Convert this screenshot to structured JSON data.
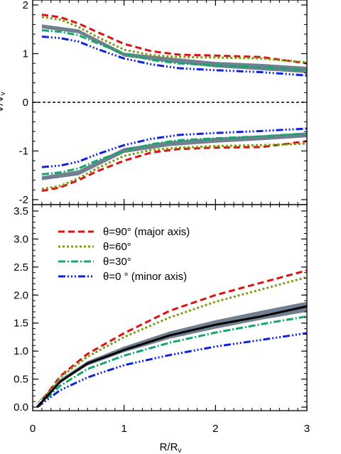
{
  "chart_data": [
    {
      "id": "top",
      "type": "line",
      "xlim": [
        0,
        3
      ],
      "ylim": [
        -2,
        2
      ],
      "yticks": [
        "-2",
        "-1",
        "0",
        "1",
        "2"
      ],
      "ylabel_fragment": "V/V",
      "ylabel_sub": "v",
      "zero_line": true,
      "band": {
        "color": "#708090",
        "x": [
          0.1,
          0.5,
          1,
          1.5,
          2,
          2.5,
          3
        ],
        "upper": [
          1.6,
          1.5,
          1.02,
          0.92,
          0.83,
          0.79,
          0.73
        ],
        "lower": [
          1.52,
          1.42,
          0.94,
          0.82,
          0.72,
          0.66,
          0.6
        ]
      },
      "series": [
        {
          "key": "t90",
          "color": "#dd1111",
          "dash": "9,5",
          "width": 3,
          "x": [
            0.1,
            0.3,
            0.5,
            0.7,
            1,
            1.3,
            1.6,
            2,
            2.5,
            3
          ],
          "y": [
            1.8,
            1.75,
            1.62,
            1.45,
            1.2,
            1.05,
            0.98,
            0.96,
            0.93,
            0.8
          ]
        },
        {
          "key": "t60",
          "color": "#7f9a1a",
          "dash": "3,3",
          "width": 3,
          "x": [
            0.1,
            0.3,
            0.5,
            0.7,
            1,
            1.3,
            1.6,
            2,
            2.5,
            3
          ],
          "y": [
            1.75,
            1.7,
            1.55,
            1.35,
            1.08,
            0.97,
            0.93,
            0.92,
            0.9,
            0.82
          ]
        },
        {
          "key": "t30",
          "color": "#11a86a",
          "dash": "10,3,2,3",
          "width": 3,
          "x": [
            0.1,
            0.3,
            0.5,
            0.7,
            1,
            1.3,
            1.6,
            2,
            2.5,
            3
          ],
          "y": [
            1.48,
            1.45,
            1.38,
            1.22,
            1.0,
            0.87,
            0.8,
            0.76,
            0.72,
            0.66
          ]
        },
        {
          "key": "t0",
          "color": "#1122dd",
          "dash": "10,3,2,3,2,3,2,3",
          "width": 3,
          "x": [
            0.1,
            0.3,
            0.5,
            0.7,
            1,
            1.3,
            1.6,
            2,
            2.5,
            3
          ],
          "y": [
            1.35,
            1.32,
            1.25,
            1.1,
            0.9,
            0.78,
            0.7,
            0.66,
            0.62,
            0.55
          ]
        },
        {
          "key": "t90n",
          "color": "#dd1111",
          "dash": "9,5",
          "width": 3,
          "x": [
            0.1,
            0.3,
            0.5,
            0.7,
            1,
            1.3,
            1.6,
            2,
            2.5,
            3
          ],
          "y": [
            -1.82,
            -1.75,
            -1.6,
            -1.42,
            -1.2,
            -1.03,
            -0.96,
            -0.93,
            -0.92,
            -0.8
          ]
        },
        {
          "key": "t60n",
          "color": "#7f9a1a",
          "dash": "3,3",
          "width": 3,
          "x": [
            0.1,
            0.3,
            0.5,
            0.7,
            1,
            1.3,
            1.6,
            2,
            2.5,
            3
          ],
          "y": [
            -1.78,
            -1.72,
            -1.56,
            -1.36,
            -1.1,
            -0.98,
            -0.93,
            -0.9,
            -0.88,
            -0.85
          ]
        },
        {
          "key": "t30n",
          "color": "#11a86a",
          "dash": "10,3,2,3",
          "width": 3,
          "x": [
            0.1,
            0.3,
            0.5,
            0.7,
            1,
            1.3,
            1.6,
            2,
            2.5,
            3
          ],
          "y": [
            -1.48,
            -1.44,
            -1.36,
            -1.2,
            -1.0,
            -0.86,
            -0.78,
            -0.74,
            -0.7,
            -0.64
          ]
        },
        {
          "key": "t0n",
          "color": "#1122dd",
          "dash": "10,3,2,3,2,3,2,3",
          "width": 3,
          "x": [
            0.1,
            0.3,
            0.5,
            0.7,
            1,
            1.3,
            1.6,
            2,
            2.5,
            3
          ],
          "y": [
            -1.33,
            -1.3,
            -1.22,
            -1.07,
            -0.88,
            -0.75,
            -0.67,
            -0.63,
            -0.59,
            -0.54
          ]
        }
      ],
      "band_neg": {
        "color": "#708090",
        "x": [
          0.1,
          0.5,
          1,
          1.5,
          2,
          2.5,
          3
        ],
        "upper": [
          -1.52,
          -1.4,
          -0.94,
          -0.8,
          -0.73,
          -0.68,
          -0.62
        ],
        "lower": [
          -1.6,
          -1.5,
          -1.04,
          -0.9,
          -0.83,
          -0.78,
          -0.72
        ]
      }
    },
    {
      "id": "bottom",
      "type": "line",
      "xlim": [
        0,
        3
      ],
      "ylim": [
        0,
        3.5
      ],
      "yticks": [
        "0.0",
        "0.5",
        "1.0",
        "1.5",
        "2.0",
        "2.5",
        "3.0",
        "3.5"
      ],
      "xticks": [
        "0",
        "1",
        "2",
        "3"
      ],
      "xlabel": "R/R",
      "xlabel_sub": "v",
      "band": {
        "color": "#708090",
        "x": [
          0.0,
          0.3,
          0.6,
          1.0,
          1.5,
          2.0,
          2.5,
          3.0
        ],
        "upper": [
          0.0,
          0.5,
          0.82,
          1.08,
          1.35,
          1.55,
          1.72,
          1.88
        ],
        "lower": [
          0.0,
          0.44,
          0.74,
          0.98,
          1.22,
          1.4,
          1.56,
          1.7
        ]
      },
      "series": [
        {
          "key": "black",
          "color": "#000000",
          "dash": "",
          "width": 3,
          "x": [
            0.05,
            0.3,
            0.6,
            1.0,
            1.5,
            2.0,
            2.5,
            3.0
          ],
          "y": [
            0.0,
            0.45,
            0.78,
            1.02,
            1.28,
            1.47,
            1.62,
            1.8
          ]
        },
        {
          "key": "t90",
          "color": "#dd1111",
          "dash": "9,5",
          "width": 3,
          "x": [
            0.05,
            0.3,
            0.6,
            1.0,
            1.5,
            2.0,
            2.5,
            3.0
          ],
          "y": [
            0.0,
            0.55,
            0.95,
            1.32,
            1.72,
            2.0,
            2.22,
            2.44
          ]
        },
        {
          "key": "t60",
          "color": "#7f9a1a",
          "dash": "3,3",
          "width": 3,
          "x": [
            0.05,
            0.3,
            0.6,
            1.0,
            1.5,
            2.0,
            2.5,
            3.0
          ],
          "y": [
            0.0,
            0.53,
            0.9,
            1.25,
            1.6,
            1.88,
            2.1,
            2.32
          ]
        },
        {
          "key": "t30",
          "color": "#11a86a",
          "dash": "10,3,2,3",
          "width": 3,
          "x": [
            0.05,
            0.3,
            0.6,
            1.0,
            1.5,
            2.0,
            2.5,
            3.0
          ],
          "y": [
            0.0,
            0.38,
            0.68,
            0.92,
            1.15,
            1.33,
            1.48,
            1.62
          ]
        },
        {
          "key": "t0",
          "color": "#1122dd",
          "dash": "10,3,2,3,2,3,2,3",
          "width": 3,
          "x": [
            0.05,
            0.3,
            0.6,
            1.0,
            1.5,
            2.0,
            2.5,
            3.0
          ],
          "y": [
            0.0,
            0.3,
            0.53,
            0.75,
            0.93,
            1.08,
            1.2,
            1.32
          ]
        }
      ],
      "legend": {
        "placement": "top-left",
        "entries": [
          {
            "color": "#dd1111",
            "dash": "9,5",
            "label": "θ=90° (major axis)"
          },
          {
            "color": "#7f9a1a",
            "dash": "3,3",
            "label": "θ=60°"
          },
          {
            "color": "#11a86a",
            "dash": "10,3,2,3",
            "label": "θ=30°"
          },
          {
            "color": "#1122dd",
            "dash": "10,3,2,3,2,3,2,3",
            "label": "θ=0  ° (minor axis)"
          }
        ]
      }
    }
  ]
}
